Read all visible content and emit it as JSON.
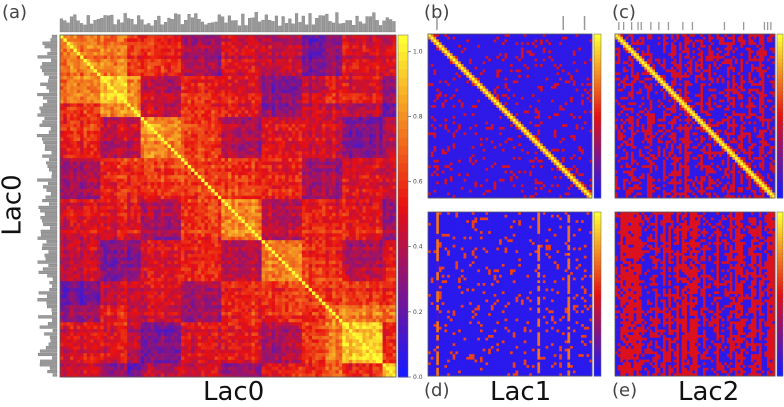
{
  "panel_labels": {
    "a": "(a)",
    "b": "(b)",
    "c": "(c)",
    "d": "(d)",
    "e": "(e)"
  },
  "axis_titles": {
    "a_x": "Lac0",
    "a_y": "Lac0",
    "d_x": "Lac1",
    "e_x": "Lac2"
  },
  "colors": {
    "low": "#1a1aff",
    "mid": "#e81010",
    "high": "#ffff33",
    "bars": "#9a9a9a"
  },
  "chart_data": [
    {
      "panel": "a",
      "type": "heatmap",
      "title": "",
      "xlabel": "Lac0",
      "ylabel": "Lac0",
      "colorbar_ticks": [
        "0.0",
        "0.2",
        "0.4",
        "0.6",
        "0.8",
        "1.0"
      ],
      "colorbar_range": [
        0.0,
        1.05
      ],
      "diagonal_value": 1.0,
      "grid": 100,
      "marginal_bars": "top and left"
    },
    {
      "panel": "b",
      "type": "heatmap",
      "title": "",
      "diagonal_value": 1.0,
      "grid": 60,
      "marginal_bars": "top"
    },
    {
      "panel": "c",
      "type": "heatmap",
      "title": "",
      "diagonal_value": 1.0,
      "grid": 60,
      "marginal_bars": "top"
    },
    {
      "panel": "d",
      "type": "heatmap",
      "title": "",
      "xlabel": "Lac1",
      "grid": 60
    },
    {
      "panel": "e",
      "type": "heatmap",
      "title": "",
      "xlabel": "Lac2",
      "grid": 60
    }
  ]
}
